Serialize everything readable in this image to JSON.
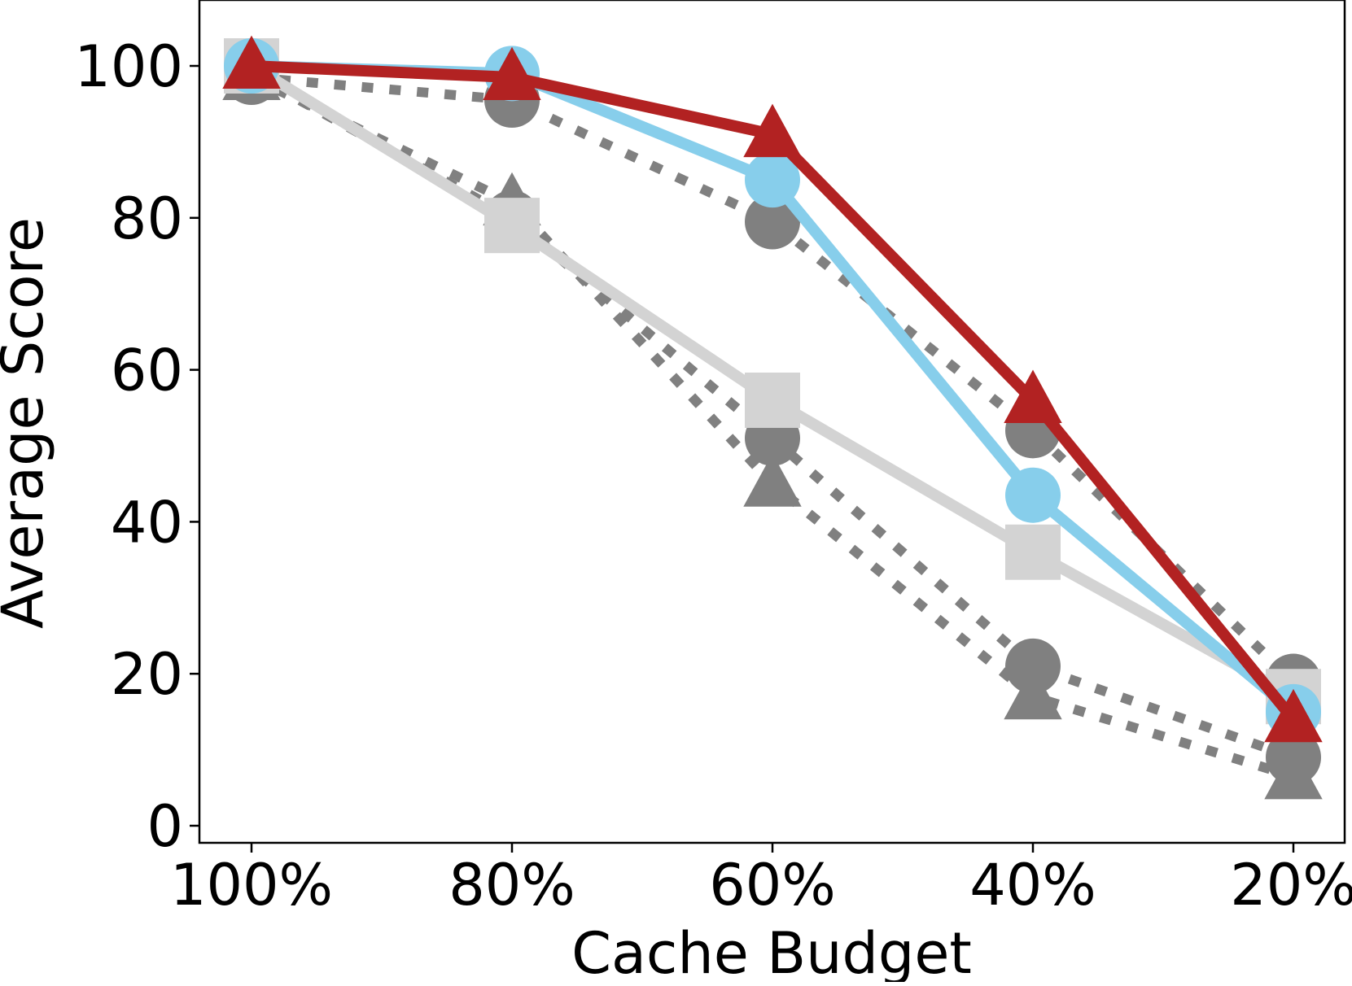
{
  "chart_data": {
    "type": "line",
    "xlabel": "Cache Budget",
    "ylabel": "Average Score",
    "categories": [
      "100%",
      "80%",
      "60%",
      "40%",
      "20%"
    ],
    "yticks": [
      0,
      20,
      40,
      60,
      80,
      100
    ],
    "ylim": [
      -2,
      108
    ],
    "grid": false,
    "legend": "none",
    "series": [
      {
        "values": [
          98.5,
          95.5,
          79.5,
          52,
          19
        ],
        "color": "#808080",
        "line_style": "dotted",
        "marker": "circle"
      },
      {
        "values": [
          98.5,
          82,
          45,
          17,
          6.5
        ],
        "color": "#808080",
        "line_style": "dotted",
        "marker": "triangle"
      },
      {
        "values": [
          99,
          80,
          51,
          21,
          9
        ],
        "color": "#808080",
        "line_style": "dotted",
        "marker": "circle"
      },
      {
        "values": [
          100,
          79,
          56,
          36,
          17
        ],
        "color": "#d3d3d3",
        "line_style": "solid",
        "marker": "square"
      },
      {
        "values": [
          100,
          99,
          85,
          43.5,
          15
        ],
        "color": "#87ceeb",
        "line_style": "solid",
        "marker": "circle"
      },
      {
        "values": [
          100,
          98.5,
          91,
          56,
          14
        ],
        "color": "#b22222",
        "line_style": "solid",
        "marker": "triangle"
      }
    ]
  }
}
